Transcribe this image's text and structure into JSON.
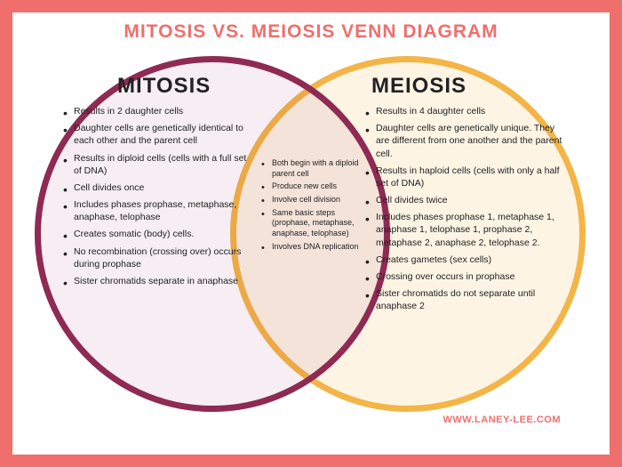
{
  "title": "MITOSIS VS. MEIOSIS VENN DIAGRAM",
  "colors": {
    "border": "#ef6f6c",
    "title": "#ef6f6c",
    "left_circle_stroke": "#8f2a53",
    "left_circle_fill": "rgba(143,42,83,0.08)",
    "right_circle_stroke": "#f3b547",
    "right_circle_fill": "rgba(243,181,71,0.15)",
    "text": "#222222",
    "watermark": "#ef6f6c",
    "background": "#ffffff"
  },
  "venn": {
    "type": "venn-diagram",
    "circle_diameter": 400,
    "stroke_width": 7,
    "left": {
      "title": "MITOSIS",
      "items": [
        "Results in 2 daughter cells",
        "Daughter cells are genetically identical to each other and the parent cell",
        "Results in diploid cells (cells with a full set of DNA)",
        "Cell divides once",
        "Includes phases prophase, metaphase, anaphase, telophase",
        "Creates somatic (body) cells.",
        "No recombination (crossing over) occurs during prophase",
        "Sister chromatids separate in anaphase"
      ]
    },
    "center": {
      "items": [
        "Both begin with a diploid parent cell",
        "Produce new cells",
        "Involve cell division",
        "Same basic steps (prophase, metaphase, anaphase, telophase)",
        "Involves DNA replication"
      ]
    },
    "right": {
      "title": "MEIOSIS",
      "items": [
        "Results in 4 daughter cells",
        "Daughter cells are genetically unique. They are different from one another and the parent cell.",
        "Results in haploid cells (cells with only a half set of DNA)",
        "Cell divides twice",
        "Includes phases prophase 1, metaphase 1, anaphase 1, telophase 1, prophase 2, metaphase 2, anaphase 2, telophase 2.",
        "Creates gametes (sex cells)",
        "Crossing over occurs in prophase",
        "Sister chromatids do not separate until anaphase 2"
      ]
    }
  },
  "watermark": "WWW.LANEY-LEE.COM"
}
